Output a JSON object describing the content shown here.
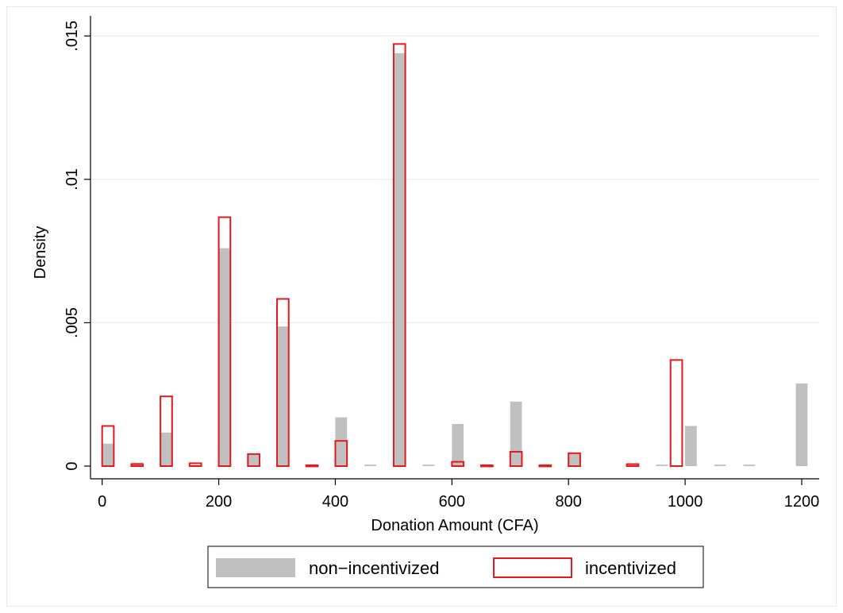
{
  "chart_data": {
    "type": "bar",
    "title": "",
    "xlabel": "Donation Amount (CFA)",
    "ylabel": "Density",
    "xlim": [
      -20,
      1230
    ],
    "ylim": [
      0,
      0.0157
    ],
    "xticks": [
      {
        "value": 0,
        "label": "0"
      },
      {
        "value": 200,
        "label": "200"
      },
      {
        "value": 400,
        "label": "400"
      },
      {
        "value": 600,
        "label": "600"
      },
      {
        "value": 800,
        "label": "800"
      },
      {
        "value": 1000,
        "label": "1000"
      },
      {
        "value": 1200,
        "label": "1200"
      }
    ],
    "yticks": [
      {
        "value": 0,
        "label": "0"
      },
      {
        "value": 0.005,
        "label": ".005"
      },
      {
        "value": 0.01,
        "label": ".01"
      },
      {
        "value": 0.015,
        "label": ".015"
      }
    ],
    "grid": true,
    "legend_placement": "bottom",
    "bin_width": 20,
    "series": [
      {
        "name": "non−incentivized",
        "style": "filled",
        "color": "#c0c0c0",
        "x": [
          10,
          60,
          110,
          160,
          210,
          260,
          310,
          360,
          410,
          460,
          510,
          560,
          610,
          660,
          710,
          760,
          810,
          910,
          960,
          1010,
          1060,
          1110,
          1200
        ],
        "values": [
          0.00078,
          0.00012,
          0.00117,
          5e-05,
          0.0076,
          0.00042,
          0.00487,
          5e-05,
          0.0017,
          5e-05,
          0.0144,
          5e-05,
          0.00147,
          5e-05,
          0.00225,
          5e-05,
          0.00047,
          5e-05,
          5e-05,
          0.0014,
          5e-05,
          5e-05,
          0.00288
        ]
      },
      {
        "name": "incentivized",
        "style": "outline",
        "color": "#e31a1c",
        "x": [
          10,
          60,
          110,
          160,
          210,
          260,
          310,
          360,
          410,
          510,
          610,
          660,
          710,
          760,
          810,
          910,
          985
        ],
        "values": [
          0.0014,
          7e-05,
          0.00243,
          0.0001,
          0.00868,
          0.00042,
          0.00583,
          3e-05,
          0.00088,
          0.01472,
          0.00015,
          3e-05,
          0.0005,
          3e-05,
          0.00045,
          7e-05,
          0.0037
        ]
      }
    ]
  },
  "legend": {
    "items": [
      {
        "label": "non−incentivized"
      },
      {
        "label": "incentivized"
      }
    ]
  }
}
